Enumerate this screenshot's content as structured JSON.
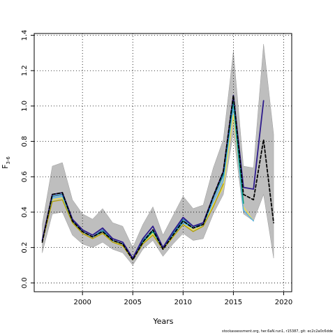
{
  "chart_data": {
    "type": "line",
    "xlabel": "Years",
    "ylabel": "F",
    "ylabel_subscript": "3-6",
    "xlim": [
      1995.2,
      2020.8
    ],
    "ylim": [
      -0.05,
      1.41
    ],
    "x_ticks": [
      2000,
      2005,
      2010,
      2015,
      2020
    ],
    "y_ticks": [
      0.0,
      0.2,
      0.4,
      0.6,
      0.8,
      1.0,
      1.2,
      1.4
    ],
    "x_tick_labels": [
      "2000",
      "2005",
      "2010",
      "2015",
      "2020"
    ],
    "y_tick_labels": [
      "0.0",
      "0.2",
      "0.4",
      "0.6",
      "0.8",
      "1.0",
      "1.2",
      "1.4"
    ],
    "grid": true,
    "grid_style": "dotted",
    "band": {
      "x": [
        1996,
        1997,
        1998,
        1999,
        2000,
        2001,
        2002,
        2003,
        2004,
        2005,
        2006,
        2007,
        2008,
        2009,
        2010,
        2011,
        2012,
        2013,
        2014,
        2015,
        2016,
        2017,
        2018,
        2019
      ],
      "lower": [
        0.17,
        0.39,
        0.4,
        0.27,
        0.22,
        0.2,
        0.23,
        0.19,
        0.17,
        0.1,
        0.19,
        0.24,
        0.15,
        0.22,
        0.28,
        0.24,
        0.25,
        0.39,
        0.5,
        0.85,
        0.39,
        0.35,
        0.5,
        0.14
      ],
      "upper": [
        0.33,
        0.66,
        0.68,
        0.47,
        0.39,
        0.36,
        0.42,
        0.34,
        0.32,
        0.2,
        0.33,
        0.43,
        0.27,
        0.38,
        0.49,
        0.42,
        0.44,
        0.65,
        0.81,
        1.31,
        0.66,
        0.65,
        1.35,
        0.84
      ],
      "color": "#bebebe"
    },
    "series": [
      {
        "color": "#f0e442",
        "width": 1.2,
        "dash": "",
        "x": [
          1996,
          1997,
          1998,
          1999,
          2000,
          2001,
          2002,
          2003,
          2004,
          2005,
          2006,
          2007,
          2008,
          2009,
          2010,
          2011,
          2012,
          2013,
          2014,
          2015,
          2016,
          2017
        ],
        "y": [
          0.23,
          0.47,
          0.48,
          0.34,
          0.28,
          0.25,
          0.28,
          0.24,
          0.21,
          0.13,
          0.22,
          0.28,
          0.19,
          0.26,
          0.33,
          0.3,
          0.32,
          0.44,
          0.54,
          0.95,
          0.43,
          0.35
        ]
      },
      {
        "color": "#56b4e9",
        "width": 1.4,
        "dash": "",
        "x": [
          1996,
          1997,
          1998,
          1999,
          2000,
          2001,
          2002,
          2003,
          2004,
          2005,
          2006,
          2007,
          2008,
          2009,
          2010,
          2011,
          2012,
          2013,
          2014,
          2015,
          2016,
          2017
        ],
        "y": [
          0.24,
          0.48,
          0.49,
          0.35,
          0.29,
          0.26,
          0.29,
          0.24,
          0.22,
          0.13,
          0.23,
          0.29,
          0.19,
          0.27,
          0.34,
          0.31,
          0.33,
          0.46,
          0.58,
          1.0,
          0.41,
          0.35
        ]
      },
      {
        "color": "#009e73",
        "width": 1.4,
        "dash": "",
        "x": [
          1996,
          1997,
          1998,
          1999,
          2000,
          2001,
          2002,
          2003,
          2004,
          2005,
          2006,
          2007,
          2008,
          2009,
          2010,
          2011,
          2012,
          2013,
          2014,
          2015,
          2016
        ],
        "y": [
          0.24,
          0.49,
          0.5,
          0.35,
          0.29,
          0.26,
          0.29,
          0.24,
          0.22,
          0.14,
          0.23,
          0.29,
          0.2,
          0.28,
          0.35,
          0.31,
          0.33,
          0.48,
          0.61,
          1.03,
          0.45
        ]
      },
      {
        "color": "#b3a000",
        "width": 1.3,
        "dash": "",
        "x": [
          1996,
          1997,
          1998,
          1999,
          2000,
          2001,
          2002,
          2003,
          2004,
          2005,
          2006,
          2007,
          2008,
          2009,
          2010,
          2011,
          2012,
          2013,
          2014
        ],
        "y": [
          0.23,
          0.46,
          0.47,
          0.34,
          0.28,
          0.25,
          0.28,
          0.23,
          0.21,
          0.13,
          0.22,
          0.27,
          0.19,
          0.26,
          0.33,
          0.29,
          0.32,
          0.43,
          0.56
        ]
      },
      {
        "color": "#1f78b4",
        "width": 1.4,
        "dash": "",
        "x": [
          1996,
          1997,
          1998,
          1999,
          2000,
          2001,
          2002,
          2003,
          2004,
          2005,
          2006,
          2007,
          2008,
          2009,
          2010,
          2011,
          2012,
          2013,
          2014,
          2015
        ],
        "y": [
          0.24,
          0.49,
          0.5,
          0.35,
          0.29,
          0.26,
          0.3,
          0.24,
          0.22,
          0.14,
          0.24,
          0.3,
          0.2,
          0.28,
          0.36,
          0.32,
          0.33,
          0.48,
          0.62,
          1.05
        ]
      },
      {
        "color": "#2e1b8c",
        "width": 1.8,
        "dash": "",
        "x": [
          1996,
          1997,
          1998,
          1999,
          2000,
          2001,
          2002,
          2003,
          2004,
          2005,
          2006,
          2007,
          2008,
          2009,
          2010,
          2011,
          2012,
          2013,
          2014,
          2015,
          2016,
          2017,
          2018
        ],
        "y": [
          0.24,
          0.5,
          0.51,
          0.36,
          0.3,
          0.27,
          0.31,
          0.25,
          0.23,
          0.14,
          0.25,
          0.32,
          0.2,
          0.29,
          0.37,
          0.32,
          0.34,
          0.49,
          0.63,
          1.06,
          0.54,
          0.53,
          1.03
        ]
      },
      {
        "color": "#000000",
        "width": 1.8,
        "dash": "4,3",
        "x": [
          1996,
          1997,
          1998,
          1999,
          2000,
          2001,
          2002,
          2003,
          2004,
          2005,
          2006,
          2007,
          2008,
          2009,
          2010,
          2011,
          2012,
          2013,
          2014,
          2015,
          2016,
          2017,
          2018,
          2019
        ],
        "y": [
          0.23,
          0.5,
          0.51,
          0.35,
          0.29,
          0.26,
          0.29,
          0.24,
          0.22,
          0.13,
          0.23,
          0.3,
          0.19,
          0.27,
          0.35,
          0.31,
          0.33,
          0.49,
          0.63,
          1.06,
          0.5,
          0.47,
          0.81,
          0.34
        ]
      }
    ]
  },
  "footer": "stockassessment.org, her.6aN.run1, r15387, git: ec2c2a0c6dde"
}
